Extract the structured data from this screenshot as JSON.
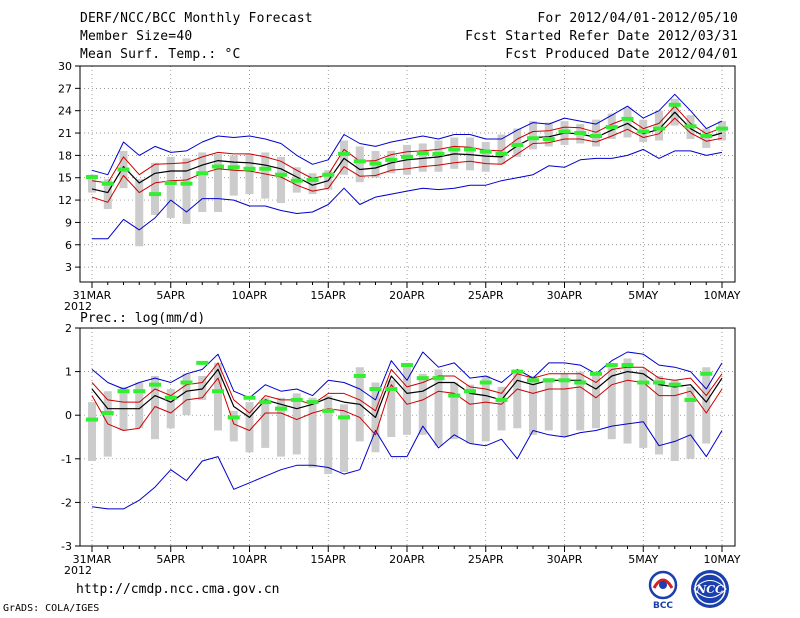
{
  "header": {
    "title": "DERF/NCC/BCC Monthly Forecast",
    "member_size": "Member Size=40",
    "top_variable": "Mean Surf. Temp.: °C",
    "period": "For 2012/04/01-2012/05/10",
    "fcst_started": "Fcst Started Refer Date 2012/03/31",
    "fcst_produced": "Fcst Produced Date 2012/04/01"
  },
  "footer": {
    "url": "http://cmdp.ncc.cma.gov.cn",
    "credit": "GrADS: COLA/IGES",
    "logo_left_text": "BCC",
    "logo_right_text": "NCC"
  },
  "colors": {
    "ensemble_max_min": "#0000cc",
    "ensemble_spread": "#cc0000",
    "ensemble_mean": "#000000",
    "observation_marker": "#33ee33",
    "range_bar": "#cccccc"
  },
  "chart_data": [
    {
      "type": "line",
      "title": "Mean Surf. Temp.: °C",
      "x_labels": [
        "31MAR",
        "5APR",
        "10APR",
        "15APR",
        "20APR",
        "25APR",
        "30APR",
        "5MAY",
        "10MAY"
      ],
      "x_label_index": [
        0,
        5,
        10,
        15,
        20,
        25,
        30,
        35,
        40
      ],
      "x_year_label": "2012",
      "ylim": [
        1,
        30
      ],
      "yticks": [
        3,
        6,
        9,
        12,
        15,
        18,
        21,
        24,
        27,
        30
      ],
      "grid": true,
      "series": [
        {
          "name": "max",
          "values": [
            16,
            15.4,
            19.8,
            18,
            19.2,
            18.4,
            18.6,
            19.8,
            20.6,
            20.4,
            20.6,
            20.2,
            19.6,
            18,
            16.8,
            17.4,
            20.8,
            19.6,
            19.2,
            19.8,
            20.2,
            20.6,
            20.2,
            20.8,
            20.8,
            20.2,
            20.2,
            21.4,
            22.4,
            22.2,
            23,
            22.6,
            22.2,
            23.4,
            24.6,
            23,
            24,
            26.2,
            24,
            21.6,
            22.6
          ]
        },
        {
          "name": "spread_upper",
          "values": [
            14.6,
            14.3,
            17.8,
            15.4,
            16.8,
            16.9,
            17,
            17.8,
            18.4,
            18.2,
            18.2,
            17.8,
            17.2,
            16,
            14.9,
            15.4,
            18.8,
            17.2,
            17.3,
            18.1,
            18.5,
            18.6,
            18.8,
            19.2,
            19.1,
            18.7,
            18.6,
            20.2,
            21.2,
            21.3,
            21.8,
            21.7,
            21.1,
            22.2,
            23,
            21.6,
            22.3,
            24.6,
            22.3,
            20.9,
            21.7
          ]
        },
        {
          "name": "mean",
          "values": [
            13.5,
            13,
            16.5,
            14.3,
            15.6,
            15.9,
            15.9,
            16.7,
            17.3,
            17.1,
            17,
            16.7,
            16.2,
            15.1,
            14,
            14.6,
            17.6,
            16.1,
            16.3,
            17,
            17.4,
            17.6,
            17.8,
            18.2,
            18.1,
            17.9,
            17.8,
            19.3,
            20.4,
            20.5,
            21,
            20.9,
            20.4,
            21.4,
            22.3,
            20.9,
            21.5,
            23.8,
            21.6,
            20.4,
            21
          ]
        },
        {
          "name": "spread_lower",
          "values": [
            12.4,
            11.7,
            15.3,
            13,
            14.3,
            14.6,
            14.7,
            15.6,
            16.2,
            16,
            15.9,
            15.5,
            15.1,
            14,
            13.2,
            13.6,
            16.5,
            15.2,
            15.3,
            16,
            16.2,
            16.5,
            16.7,
            17,
            17.2,
            16.9,
            16.8,
            18.2,
            19.6,
            19.7,
            20.2,
            20.2,
            19.8,
            20.6,
            21.5,
            20.4,
            20.9,
            23,
            21,
            19.9,
            20.3
          ]
        },
        {
          "name": "min",
          "values": [
            6.8,
            6.8,
            9.4,
            8,
            9.6,
            12,
            10.4,
            12.2,
            12.2,
            12,
            11.2,
            11.2,
            10.6,
            10.2,
            10.4,
            11.4,
            13.6,
            11.4,
            12.4,
            12.8,
            13.2,
            13.6,
            13.4,
            13.6,
            14,
            14,
            14.6,
            15,
            15.4,
            16.6,
            16.4,
            17.4,
            17.6,
            17.6,
            18,
            18.8,
            17.6,
            18.6,
            18.6,
            18,
            18.4
          ]
        },
        {
          "name": "observation",
          "values": [
            15.1,
            14.2,
            16.1,
            null,
            12.8,
            14.3,
            14.2,
            15.6,
            16.5,
            16.4,
            16.2,
            16.2,
            15.4,
            14.6,
            14.7,
            15.4,
            18.2,
            17.2,
            16.9,
            17.4,
            17.8,
            18.3,
            18.2,
            18.8,
            18.8,
            18.5,
            18.2,
            19.4,
            20.3,
            20.2,
            21.2,
            21,
            20.6,
            21.8,
            22.9,
            21.2,
            21.6,
            24.8,
            21.9,
            20.6,
            21.6
          ]
        },
        {
          "name": "range_high",
          "values": [
            15.4,
            14.8,
            18.6,
            14.8,
            17,
            17.8,
            17.6,
            18.4,
            18.2,
            18,
            18.2,
            18.4,
            17.8,
            16.4,
            15.6,
            16,
            20,
            19.2,
            18.6,
            18.6,
            19.4,
            19.6,
            20,
            20.4,
            20.4,
            19.8,
            20.8,
            21.6,
            22.6,
            22.4,
            22.6,
            22.2,
            22.8,
            23.6,
            24.4,
            22.8,
            24,
            25.6,
            23.4,
            21.6,
            22.6
          ]
        },
        {
          "name": "range_low",
          "values": [
            13,
            10.8,
            13.6,
            5.8,
            10,
            9.6,
            8.8,
            10.4,
            10.4,
            12.6,
            12.8,
            12.2,
            11.6,
            13,
            12.8,
            13.4,
            15.4,
            14.4,
            15,
            15.6,
            15.4,
            15.8,
            15.8,
            16.2,
            16,
            15.8,
            16.8,
            17.8,
            18.8,
            19.2,
            19.4,
            19.6,
            19.2,
            20.2,
            20.4,
            19.8,
            20,
            22,
            20.2,
            19,
            20
          ]
        }
      ]
    },
    {
      "type": "line",
      "title": "Prec.: log(mm/d)",
      "x_labels": [
        "31MAR",
        "5APR",
        "10APR",
        "15APR",
        "20APR",
        "25APR",
        "30APR",
        "5MAY",
        "10MAY"
      ],
      "x_label_index": [
        0,
        5,
        10,
        15,
        20,
        25,
        30,
        35,
        40
      ],
      "x_year_label": "2012",
      "ylim": [
        -3,
        2
      ],
      "yticks": [
        -3,
        -2,
        -1,
        0,
        1,
        2
      ],
      "grid": true,
      "series": [
        {
          "name": "max",
          "values": [
            1.05,
            0.75,
            0.6,
            0.75,
            0.85,
            0.75,
            0.95,
            1.05,
            1.4,
            0.55,
            0.4,
            0.7,
            0.55,
            0.6,
            0.45,
            0.8,
            0.75,
            0.6,
            0.35,
            1.25,
            0.8,
            1.45,
            1.1,
            1.2,
            0.85,
            0.9,
            0.75,
            1.05,
            0.85,
            1.2,
            1.2,
            1.15,
            0.95,
            1.25,
            1.45,
            1.4,
            1.15,
            1.1,
            1,
            0.6,
            1.2
          ]
        },
        {
          "name": "spread_upper",
          "values": [
            0.75,
            0.35,
            0.3,
            0.3,
            0.6,
            0.45,
            0.7,
            0.75,
            1.2,
            0.35,
            0.05,
            0.45,
            0.35,
            0.35,
            0.25,
            0.5,
            0.5,
            0.35,
            0.1,
            1.05,
            0.65,
            0.75,
            0.9,
            0.9,
            0.65,
            0.6,
            0.5,
            0.95,
            0.85,
            0.95,
            0.95,
            0.95,
            0.75,
            1.05,
            1.1,
            1.1,
            0.85,
            0.8,
            0.85,
            0.45,
            0.95
          ]
        },
        {
          "name": "mean",
          "values": [
            0.6,
            0.15,
            0.15,
            0.15,
            0.45,
            0.3,
            0.55,
            0.6,
            1.05,
            0.2,
            -0.05,
            0.35,
            0.25,
            0.15,
            0.25,
            0.4,
            0.3,
            0.25,
            -0.05,
            0.9,
            0.5,
            0.55,
            0.75,
            0.75,
            0.5,
            0.45,
            0.35,
            0.8,
            0.7,
            0.8,
            0.8,
            0.8,
            0.6,
            0.9,
            1,
            0.95,
            0.7,
            0.65,
            0.7,
            0.3,
            0.85
          ]
        },
        {
          "name": "spread_lower",
          "values": [
            0.45,
            -0.2,
            -0.35,
            -0.3,
            0.2,
            0.05,
            0.35,
            0.4,
            0.85,
            -0.2,
            -0.35,
            0.05,
            0.05,
            -0.1,
            0.05,
            0.15,
            0.1,
            -0.05,
            -0.45,
            0.7,
            0.25,
            0.35,
            0.55,
            0.5,
            0.25,
            0.3,
            0.25,
            0.6,
            0.5,
            0.6,
            0.6,
            0.65,
            0.4,
            0.7,
            0.8,
            0.75,
            0.45,
            0.45,
            0.55,
            0.05,
            0.6
          ]
        },
        {
          "name": "min",
          "values": [
            -2.1,
            -2.15,
            -2.15,
            -1.95,
            -1.65,
            -1.25,
            -1.5,
            -1.05,
            -0.95,
            -1.7,
            -1.55,
            -1.4,
            -1.25,
            -1.15,
            -1.15,
            -1.2,
            -1.35,
            -1.25,
            -0.35,
            -0.95,
            -0.95,
            -0.25,
            -0.75,
            -0.45,
            -0.65,
            -0.7,
            -0.55,
            -1,
            -0.35,
            -0.45,
            -0.5,
            -0.4,
            -0.35,
            -0.25,
            -0.2,
            -0.15,
            -0.7,
            -0.6,
            -0.45,
            -0.95,
            -0.35
          ]
        },
        {
          "name": "observation",
          "values": [
            -0.1,
            0.05,
            0.55,
            0.55,
            0.7,
            0.4,
            0.75,
            1.2,
            0.55,
            -0.05,
            0.4,
            0.3,
            0.15,
            0.35,
            0.3,
            0.1,
            -0.05,
            0.9,
            0.6,
            0.6,
            1.15,
            0.85,
            0.85,
            0.45,
            0.55,
            0.75,
            0.35,
            1,
            0.8,
            0.8,
            0.8,
            0.75,
            0.95,
            1.15,
            1.15,
            0.75,
            0.75,
            0.7,
            0.35,
            0.95
          ]
        },
        {
          "name": "range_high",
          "values": [
            0.3,
            0.55,
            0.65,
            0.75,
            0.9,
            0.6,
            0.95,
            0.9,
            1.2,
            0.1,
            0.3,
            0.4,
            0.4,
            0.5,
            0.4,
            0.45,
            0.25,
            1.1,
            0.75,
            0.8,
            1.2,
            0.95,
            1.05,
            0.75,
            0.7,
            0.9,
            0.65,
            0.95,
            0.9,
            0.85,
            0.95,
            1,
            0.95,
            1.15,
            1.3,
            1.05,
            0.9,
            0.8,
            0.65,
            1.1
          ]
        },
        {
          "name": "range_low",
          "values": [
            -1.05,
            -0.95,
            -0.35,
            -0.3,
            -0.55,
            -0.3,
            0,
            0.35,
            -0.35,
            -0.6,
            -0.85,
            -0.75,
            -0.95,
            -0.9,
            -1.2,
            -1.35,
            -1.3,
            -0.6,
            -0.85,
            -0.5,
            -0.45,
            -0.45,
            -0.7,
            -0.55,
            -0.65,
            -0.6,
            -0.35,
            -0.3,
            -0.45,
            -0.35,
            -0.5,
            -0.35,
            -0.3,
            -0.55,
            -0.65,
            -0.75,
            -0.9,
            -1.05,
            -1,
            -0.65
          ]
        }
      ]
    }
  ]
}
